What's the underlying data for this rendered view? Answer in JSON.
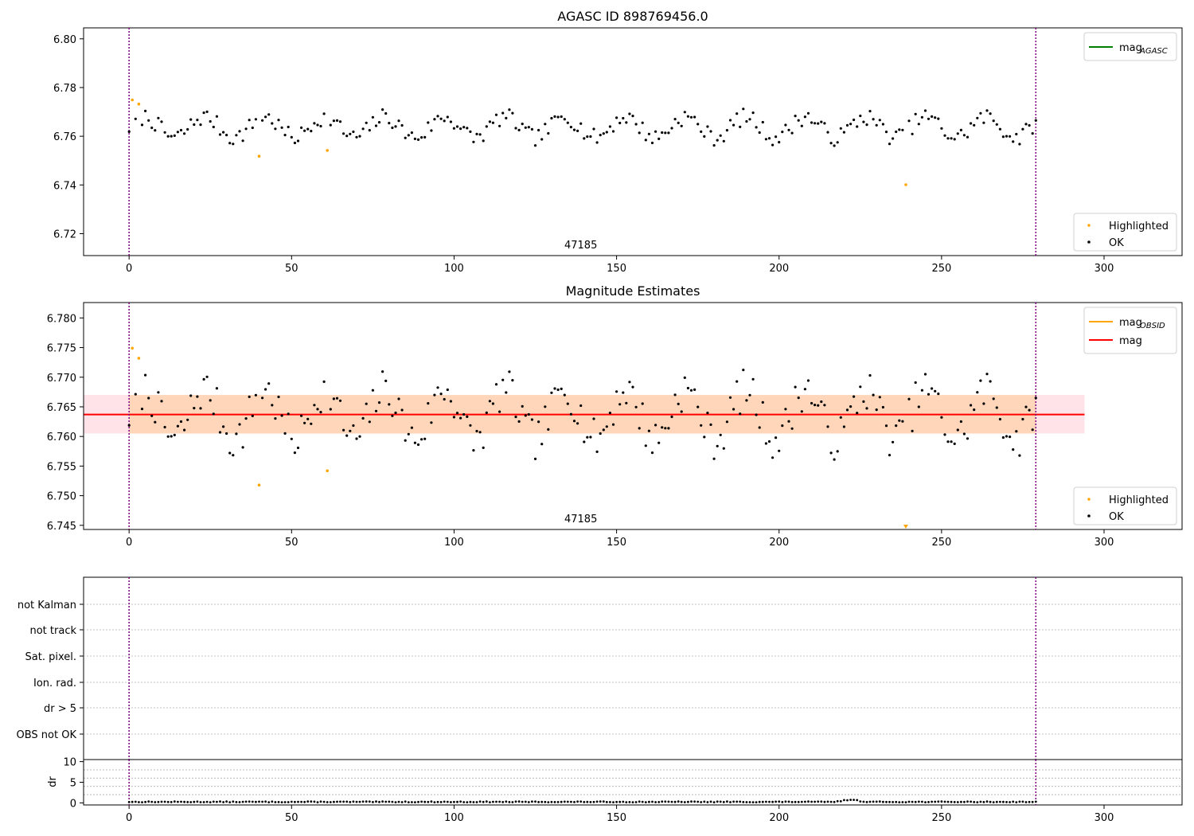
{
  "figure": {
    "colors": {
      "ok": "#000000",
      "highlighted": "#ffa500",
      "mag_line": "#ff0000",
      "agasc_line": "#008000",
      "obsid_line": "#ffa500",
      "band": "#ffc0cb",
      "vline": "#800080",
      "grid": "#b0b0b0"
    }
  },
  "chart_data": [
    {
      "type": "scatter",
      "title": "AGASC ID 898769456.0",
      "annotation": "47185",
      "xlabel": "",
      "ylabel": "",
      "xlim": [
        -14,
        324
      ],
      "ylim": [
        6.711,
        6.8045
      ],
      "xticks": [
        0,
        50,
        100,
        150,
        200,
        250,
        300
      ],
      "yticks": [
        6.72,
        6.74,
        6.76,
        6.78,
        6.8
      ],
      "ytick_labels": [
        "6.72",
        "6.74",
        "6.76",
        "6.78",
        "6.80"
      ],
      "vlines": [
        0,
        279
      ],
      "legend_upper": {
        "position": "upper right",
        "entries": [
          {
            "base": "mag",
            "sub": "AGASC",
            "style": "line",
            "color": "#008000"
          }
        ]
      },
      "legend_lower": {
        "position": "lower right",
        "entries": [
          {
            "label": "Highlighted",
            "color": "#ffa500"
          },
          {
            "label": "OK",
            "color": "#000000"
          }
        ]
      },
      "series": [
        {
          "name": "Highlighted",
          "color": "#ffa500",
          "points": [
            [
              1,
              6.7749
            ],
            [
              3,
              6.7732
            ],
            [
              40,
              6.7518
            ],
            [
              61,
              6.7542
            ],
            [
              239,
              6.7401
            ]
          ]
        }
      ],
      "ok_model": {
        "n": 280,
        "start": 0,
        "base": 6.7637,
        "amplitude": 0.0042,
        "period": 18.5,
        "jitter": 0.0035
      }
    },
    {
      "type": "scatter",
      "title": "Magnitude Estimates",
      "annotation": "47185",
      "xlabel": "",
      "ylabel": "",
      "xlim": [
        -14,
        324
      ],
      "ylim": [
        6.7443,
        6.7826
      ],
      "xticks": [
        0,
        50,
        100,
        150,
        200,
        250,
        300
      ],
      "yticks": [
        6.745,
        6.75,
        6.755,
        6.76,
        6.765,
        6.77,
        6.775,
        6.78
      ],
      "ytick_labels": [
        "6.745",
        "6.750",
        "6.755",
        "6.760",
        "6.765",
        "6.770",
        "6.775",
        "6.780"
      ],
      "vlines": [
        0,
        279
      ],
      "mag_line": {
        "value": 6.7637,
        "color": "#ff0000"
      },
      "band": {
        "low": 6.7605,
        "high": 6.767,
        "x0": -14,
        "x1": 294
      },
      "obsid_band": {
        "low": 6.7605,
        "high": 6.767,
        "x0": 0,
        "x1": 279,
        "color": "#ffa500"
      },
      "legend_upper": {
        "position": "upper right",
        "entries": [
          {
            "base": "mag",
            "sub": "OBSID",
            "style": "line",
            "color": "#ffa500"
          },
          {
            "base": "mag",
            "sub": "",
            "style": "line",
            "color": "#ff0000"
          }
        ]
      },
      "legend_lower": {
        "position": "lower right",
        "entries": [
          {
            "label": "Highlighted",
            "color": "#ffa500"
          },
          {
            "label": "OK",
            "color": "#000000"
          }
        ]
      },
      "series": [
        {
          "name": "Highlighted",
          "color": "#ffa500",
          "points": [
            [
              1,
              6.7749
            ],
            [
              3,
              6.7732
            ],
            [
              40,
              6.7518
            ],
            [
              61,
              6.7542
            ]
          ]
        }
      ],
      "offscale_marker": {
        "x": 239,
        "color": "#ffa500"
      },
      "ok_model": {
        "n": 280,
        "start": 0,
        "base": 6.7637,
        "amplitude": 0.0042,
        "period": 18.5,
        "jitter": 0.0035
      }
    },
    {
      "type": "scatter",
      "title": "",
      "xlim": [
        -14,
        324
      ],
      "categories": [
        "not Kalman",
        "not track",
        "Sat. pixel.",
        "Ion. rad.",
        "dr > 5",
        "OBS not OK"
      ],
      "vlines": [
        0,
        279
      ],
      "flags": []
    },
    {
      "type": "scatter",
      "title": "",
      "xlabel": "",
      "ylabel": "dr",
      "xlim": [
        -14,
        324
      ],
      "ylim": [
        -0.5,
        10.5
      ],
      "xticks": [
        0,
        50,
        100,
        150,
        200,
        250,
        300
      ],
      "yticks": [
        0,
        5,
        10
      ],
      "ytick_labels": [
        "0",
        "5",
        "10"
      ],
      "hlines": [
        2,
        4,
        6,
        8
      ],
      "vlines": [
        0,
        279
      ],
      "dr_model": {
        "n": 280,
        "start": 0,
        "base": 0.15,
        "jitter": 0.18,
        "bump_center": 222,
        "bump_height": 0.55
      }
    }
  ]
}
